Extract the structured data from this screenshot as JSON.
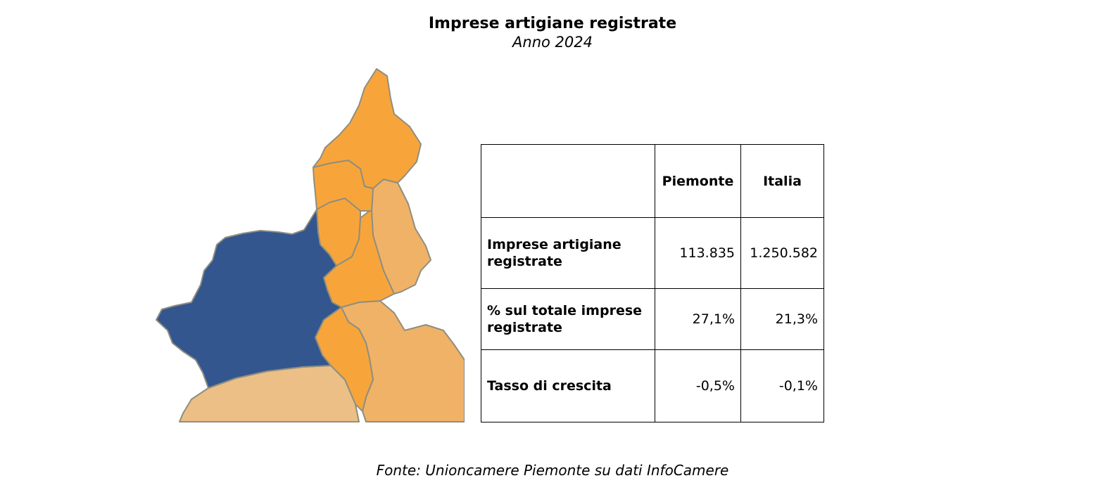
{
  "title": "Imprese artigiane registrate",
  "subtitle": "Anno 2024",
  "source": "Fonte: Unioncamere Piemonte su dati InfoCamere",
  "map": {
    "highlight_color": "#33568f",
    "region_color": "#f7a53a",
    "neighbor_color": "#f0b266",
    "outer_color": "#ebbf86",
    "border_color": "#8f8e80"
  },
  "chart_data": {
    "type": "table",
    "title": "Imprese artigiane registrate",
    "subtitle": "Anno 2024",
    "columns": [
      "",
      "Piemonte",
      "Italia"
    ],
    "rows": [
      {
        "label": "Imprese artigiane registrate",
        "values": [
          "113.835",
          "1.250.582"
        ]
      },
      {
        "label": "% sul totale imprese registrate",
        "values": [
          "27,1%",
          "21,3%"
        ]
      },
      {
        "label": "Tasso di crescita",
        "values": [
          "-0,5%",
          "-0,1%"
        ]
      }
    ]
  }
}
